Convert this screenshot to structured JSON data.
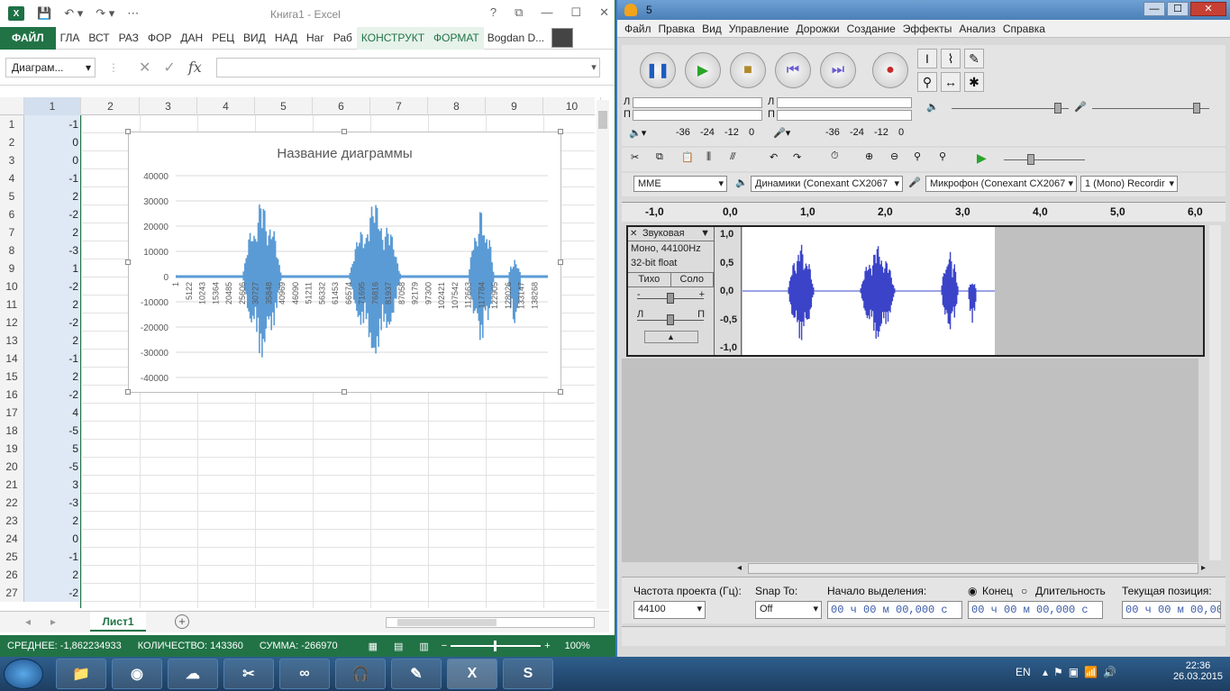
{
  "excel": {
    "title": "Книга1 - Excel",
    "ribbon_tabs": [
      "ФАЙЛ",
      "ГЛА",
      "ВСТ",
      "РАЗ",
      "ФОР",
      "ДАН",
      "РЕЦ",
      "ВИД",
      "НАД",
      "Наг",
      "Раб",
      "КОНСТРУКТ",
      "ФОРМАТ"
    ],
    "user": "Bogdan D...",
    "help": "?",
    "namebox": "Диаграм...",
    "fx": "fx",
    "columns": [
      "1",
      "2",
      "3",
      "4",
      "5",
      "6",
      "7",
      "8",
      "9",
      "10"
    ],
    "rows": [
      {
        "n": "1",
        "v": "-1"
      },
      {
        "n": "2",
        "v": "0"
      },
      {
        "n": "3",
        "v": "0"
      },
      {
        "n": "4",
        "v": "-1"
      },
      {
        "n": "5",
        "v": "2"
      },
      {
        "n": "6",
        "v": "-2"
      },
      {
        "n": "7",
        "v": "2"
      },
      {
        "n": "8",
        "v": "-3"
      },
      {
        "n": "9",
        "v": "1"
      },
      {
        "n": "10",
        "v": "-2"
      },
      {
        "n": "11",
        "v": "2"
      },
      {
        "n": "12",
        "v": "-2"
      },
      {
        "n": "13",
        "v": "2"
      },
      {
        "n": "14",
        "v": "-1"
      },
      {
        "n": "15",
        "v": "2"
      },
      {
        "n": "16",
        "v": "-2"
      },
      {
        "n": "17",
        "v": "4"
      },
      {
        "n": "18",
        "v": "-5"
      },
      {
        "n": "19",
        "v": "5"
      },
      {
        "n": "20",
        "v": "-5"
      },
      {
        "n": "21",
        "v": "3"
      },
      {
        "n": "22",
        "v": "-3"
      },
      {
        "n": "23",
        "v": "2"
      },
      {
        "n": "24",
        "v": "0"
      },
      {
        "n": "25",
        "v": "-1"
      },
      {
        "n": "26",
        "v": "2"
      },
      {
        "n": "27",
        "v": "-2"
      }
    ],
    "sheet_tab": "Лист1",
    "status": {
      "avg": "СРЕДНЕЕ: -1,862234933",
      "count": "КОЛИЧЕСТВО: 143360",
      "sum": "СУММА: -266970",
      "zoom": "100%"
    }
  },
  "chart_data": {
    "type": "line",
    "title": "Название диаграммы",
    "ylim": [
      -40000,
      40000
    ],
    "y_ticks": [
      "40000",
      "30000",
      "20000",
      "10000",
      "0",
      "-10000",
      "-20000",
      "-30000",
      "-40000"
    ],
    "x_ticks": [
      "1",
      "5122",
      "10243",
      "15364",
      "20485",
      "25606",
      "30727",
      "35848",
      "40969",
      "46090",
      "51211",
      "56332",
      "61453",
      "66574",
      "71695",
      "76816",
      "81937",
      "87058",
      "92179",
      "97300",
      "102421",
      "107542",
      "112663",
      "117784",
      "122905",
      "128026",
      "133147",
      "138268"
    ],
    "bursts": [
      {
        "start": 25606,
        "end": 40969,
        "max": 31000,
        "min": -33000
      },
      {
        "start": 66574,
        "end": 87058,
        "max": 30000,
        "min": -33000
      },
      {
        "start": 112663,
        "end": 122905,
        "max": 27000,
        "min": -27000
      },
      {
        "start": 128026,
        "end": 133147,
        "max": 7000,
        "min": -22000
      }
    ],
    "x_max": 143360,
    "color": "#5b9bd5"
  },
  "audacity": {
    "title": "5",
    "menu": [
      "Файл",
      "Правка",
      "Вид",
      "Управление",
      "Дорожки",
      "Создание",
      "Эффекты",
      "Анализ",
      "Справка"
    ],
    "meter_l": "Л",
    "meter_r": "П",
    "meter_scale": [
      "-36",
      "-24",
      "-12",
      "0"
    ],
    "host": "MME",
    "playback_device": "Динамики (Conexant CX2067",
    "record_device": "Микрофон (Conexant CX2067",
    "channels": "1 (Mono) Recordir",
    "ruler": [
      "-1,0",
      "0,0",
      "1,0",
      "2,0",
      "3,0",
      "4,0",
      "5,0",
      "6,0"
    ],
    "track": {
      "name": "Звуковая",
      "info1": "Моно, 44100Hz",
      "info2": "32-bit float",
      "mute": "Тихо",
      "solo": "Соло",
      "gain_minus": "-",
      "gain_plus": "+",
      "pan_l": "Л",
      "pan_r": "П",
      "y_axis": [
        "1,0",
        "0,5",
        "0,0",
        "-0,5",
        "-1,0"
      ]
    },
    "bottom": {
      "rate_label": "Частота проекта (Гц):",
      "rate_value": "44100",
      "snap_label": "Snap To:",
      "snap_value": "Off",
      "sel_start_label": "Начало выделения:",
      "end_label": "Конец",
      "length_label": "Длительность",
      "pos_label": "Текущая позиция:",
      "time1": "00 ч 00 м 00,000 с",
      "time2": "00 ч 00 м 00,000 с",
      "time3": "00 ч 00 м 00,000"
    }
  },
  "taskbar": {
    "lang": "EN",
    "time": "22:36",
    "date": "26.03.2015"
  }
}
